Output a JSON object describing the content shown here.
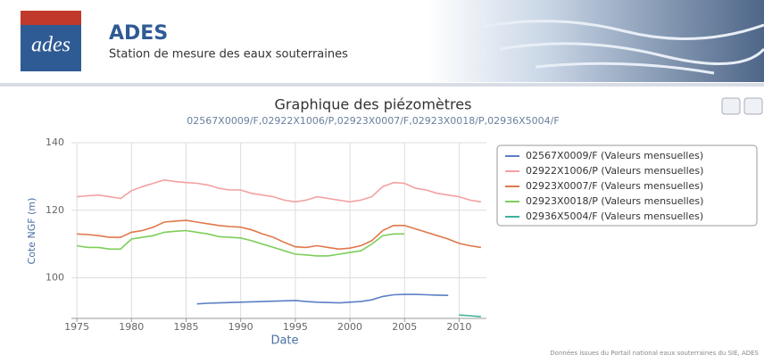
{
  "header": {
    "logo": "ades",
    "title": "ADES",
    "subtitle": "Station de mesure des eaux souterraines"
  },
  "footer": "Données issues du Portail national eaux souterraines du SIE, ADES",
  "chart_data": {
    "type": "line",
    "title": "Graphique des piézomètres",
    "subtitle": "02567X0009/F,02922X1006/P,02923X0007/F,02923X0018/P,02936X5004/F",
    "x_label": "Date",
    "y_label": "Cote NGF (m)",
    "x": [
      1975,
      1976,
      1977,
      1978,
      1979,
      1980,
      1981,
      1982,
      1983,
      1984,
      1985,
      1986,
      1987,
      1988,
      1989,
      1990,
      1991,
      1992,
      1993,
      1994,
      1995,
      1996,
      1997,
      1998,
      1999,
      2000,
      2001,
      2002,
      2003,
      2004,
      2005,
      2006,
      2007,
      2008,
      2009,
      2010,
      2011,
      2012
    ],
    "xlim": [
      1974.5,
      2012.5
    ],
    "xticks": [
      1975,
      1980,
      1985,
      1990,
      1995,
      2000,
      2005,
      2010
    ],
    "ylim": [
      88,
      140
    ],
    "yticks": [
      100,
      120,
      140
    ],
    "grid": true,
    "legend": "top-right",
    "series": [
      {
        "name": "02567X0009/F (Valeurs mensuelles)",
        "color": "#5b7fc4",
        "values": [
          null,
          null,
          null,
          null,
          null,
          null,
          null,
          null,
          null,
          null,
          null,
          92.3,
          92.5,
          92.6,
          92.7,
          92.8,
          92.9,
          93,
          93.1,
          93.2,
          93.3,
          93,
          92.8,
          92.7,
          92.6,
          92.8,
          93,
          93.5,
          94.5,
          95,
          95.1,
          95.1,
          95,
          94.9,
          94.8,
          null,
          null,
          null
        ]
      },
      {
        "name": "02922X1006/P (Valeurs mensuelles)",
        "color": "#f4a0a0",
        "values": [
          124,
          124.3,
          124.5,
          124,
          123.5,
          125.8,
          127,
          128,
          129,
          128.5,
          128.2,
          128,
          127.5,
          126.5,
          126,
          126,
          125,
          124.5,
          124,
          123,
          122.5,
          123,
          124,
          123.5,
          123,
          122.5,
          123,
          124,
          127,
          128.2,
          128,
          126.5,
          126,
          125,
          124.5,
          124,
          123,
          122.5
        ]
      },
      {
        "name": "02923X0007/F (Valeurs mensuelles)",
        "color": "#e0784a",
        "values": [
          113,
          112.8,
          112.5,
          112,
          112,
          113.5,
          114,
          115,
          116.5,
          116.8,
          117,
          116.5,
          116,
          115.5,
          115.2,
          115,
          114.2,
          113,
          112,
          110.5,
          109.2,
          109,
          109.5,
          109,
          108.5,
          108.8,
          109.5,
          111,
          114,
          115.5,
          115.5,
          114.5,
          113.5,
          112.5,
          111.5,
          110.2,
          109.5,
          109
        ]
      },
      {
        "name": "02923X0018/P (Valeurs mensuelles)",
        "color": "#7ccf5a",
        "values": [
          109.5,
          109,
          109,
          108.5,
          108.5,
          111.5,
          112,
          112.5,
          113.5,
          113.8,
          114,
          113.5,
          113,
          112.2,
          112,
          111.8,
          111,
          110,
          109,
          108,
          107,
          106.8,
          106.5,
          106.5,
          107,
          107.5,
          108,
          110,
          112.5,
          113,
          113,
          null,
          null,
          null,
          null,
          null,
          null,
          null
        ]
      },
      {
        "name": "02936X5004/F (Valeurs mensuelles)",
        "color": "#3bb39a",
        "values": [
          null,
          null,
          null,
          null,
          null,
          null,
          null,
          null,
          null,
          null,
          null,
          null,
          null,
          null,
          null,
          null,
          null,
          null,
          null,
          null,
          null,
          null,
          null,
          null,
          null,
          null,
          null,
          null,
          null,
          null,
          null,
          null,
          null,
          null,
          null,
          89,
          88.8,
          88.5
        ]
      }
    ]
  }
}
